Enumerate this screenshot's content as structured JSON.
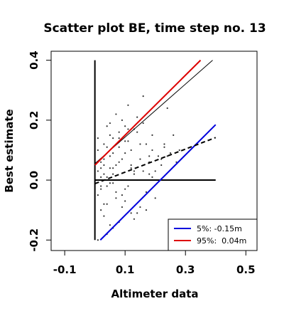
{
  "chart_data": {
    "type": "scatter",
    "title": "Scatter plot BE, time step no. 13",
    "x_label": "Altimeter data",
    "y_label": "Best estimate",
    "xlim": [
      -0.145,
      0.537
    ],
    "ylim": [
      -0.235,
      0.43
    ],
    "xticks": [
      -0.1,
      0.1,
      0.3,
      0.5
    ],
    "yticks": [
      -0.2,
      {
        "value": 0,
        "label": "0.0"
      },
      0.2,
      0.4
    ],
    "point_color": "#333333",
    "x": [
      0.01,
      0.02,
      0.03,
      0.01,
      0.04,
      0.05,
      0.02,
      0.06,
      0.03,
      0.07,
      0.08,
      0.04,
      0.05,
      0.09,
      0.1,
      0.02,
      0.03,
      0.06,
      0.11,
      0.12,
      0.01,
      0.04,
      0.07,
      0.13,
      0.14,
      0.05,
      0.08,
      0.15,
      0.02,
      0.09,
      0.16,
      0.03,
      0.1,
      0.17,
      0.06,
      0.18,
      0.11,
      0.04,
      0.19,
      0.2,
      0.07,
      0.12,
      0.21,
      0.01,
      0.08,
      0.22,
      0.13,
      0.05,
      0.23,
      0.24,
      0.14,
      0.09,
      0.02,
      0.25,
      0.15,
      0.06,
      0.26,
      0.1,
      0.03,
      0.16,
      0.27,
      0.11,
      0.07,
      0.28,
      0.17,
      0.04,
      0.12,
      0.18,
      0.08,
      0.13,
      0.05,
      0.19,
      0.09,
      0.14,
      0.02,
      0.2,
      0.06,
      0.15,
      0.1,
      0.03,
      0.11,
      0.16,
      0.07,
      0.21,
      0.04,
      0.12,
      0.08,
      0.17,
      0.22,
      0.01,
      0.09,
      0.13,
      0.05,
      0.18,
      0.23,
      0.1,
      0.06,
      0.14,
      0.19,
      0.24
    ],
    "y": [
      0.03,
      -0.02,
      0.05,
      -0.05,
      0.01,
      0.08,
      -0.1,
      0.02,
      0.12,
      -0.04,
      0.06,
      -0.08,
      0.15,
      0.0,
      0.09,
      0.04,
      -0.12,
      -0.01,
      0.13,
      0.05,
      0.1,
      0.18,
      -0.06,
      0.02,
      0.16,
      -0.15,
      0.11,
      0.07,
      -0.03,
      0.2,
      0.03,
      0.07,
      -0.07,
      0.12,
      0.14,
      0.06,
      -0.02,
      -0.18,
      0.1,
      0.03,
      0.22,
      -0.11,
      0.08,
      0.14,
      -0.14,
      0.05,
      0.17,
      0.04,
      0.11,
      0.24,
      0.0,
      -0.05,
      0.01,
      0.09,
      -0.09,
      0.09,
      0.15,
      0.13,
      -0.08,
      0.19,
      0.06,
      0.25,
      0.0,
      0.1,
      -0.04,
      0.11,
      0.04,
      0.08,
      0.16,
      -0.13,
      -0.01,
      0.01,
      0.07,
      0.21,
      0.06,
      -0.06,
      -0.16,
      0.12,
      -0.03,
      0.02,
      0.17,
      0.28,
      0.05,
      0.0,
      -0.02,
      0.1,
      0.14,
      -0.1,
      0.07,
      -0.2,
      -0.09,
      0.03,
      0.19,
      0.02,
      0.12,
      0.18,
      0.04,
      -0.11,
      0.15,
      0.08
    ],
    "lines": [
      {
        "x": [
          0,
          0
        ],
        "y": [
          -0.2,
          0.4
        ],
        "color": "#000000",
        "lwd": 2,
        "dashed": false
      },
      {
        "x": [
          0,
          0.4
        ],
        "y": [
          0,
          0
        ],
        "color": "#000000",
        "lwd": 2,
        "dashed": false
      },
      {
        "x": [
          0,
          0.39
        ],
        "y": [
          0.055,
          0.4
        ],
        "color": "#000000",
        "lwd": 1,
        "dashed": false
      },
      {
        "x": [
          0,
          0.35
        ],
        "y": [
          0.05,
          0.4
        ],
        "color": "#dd0000",
        "lwd": 2,
        "dashed": false
      },
      {
        "x": [
          0.018,
          0.4
        ],
        "y": [
          -0.2,
          0.185
        ],
        "color": "#0000dd",
        "lwd": 2,
        "dashed": false
      },
      {
        "x": [
          0,
          0.4
        ],
        "y": [
          -0.012,
          0.142
        ],
        "color": "#000000",
        "lwd": 2,
        "dashed": true
      }
    ],
    "legend": [
      {
        "label": "5%: -0.15m",
        "color": "#0000dd"
      },
      {
        "label": "95%:  0.04m",
        "color": "#dd0000"
      }
    ],
    "legend_position": "bottomright"
  }
}
